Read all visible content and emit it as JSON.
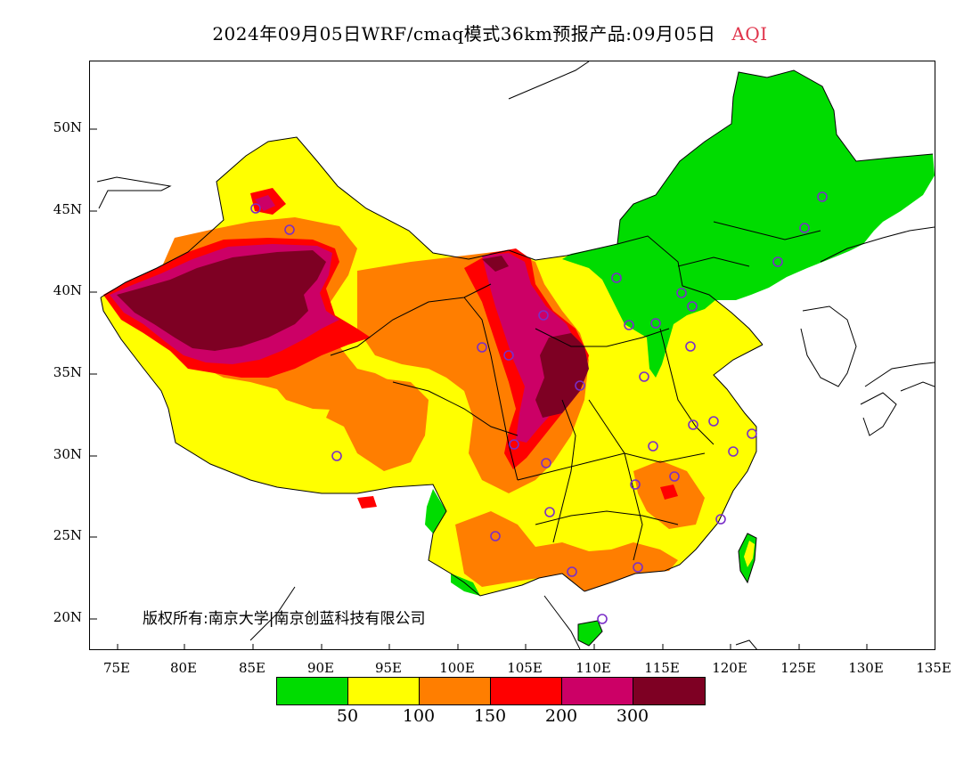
{
  "title": {
    "main": "2024年09月05日WRF/cmaq模式36km预报产品:09月05日",
    "variable": "AQI"
  },
  "map": {
    "lat_labels": [
      "50N",
      "45N",
      "40N",
      "35N",
      "30N",
      "25N",
      "20N"
    ],
    "lon_labels": [
      "75E",
      "80E",
      "85E",
      "90E",
      "95E",
      "100E",
      "105E",
      "110E",
      "115E",
      "120E",
      "125E",
      "130E",
      "135E"
    ],
    "copyright": "版权所有:南京大学|南京创蓝科技有限公司"
  },
  "legend": {
    "colors": [
      "#00dc00",
      "#ffff00",
      "#ff7e00",
      "#ff0000",
      "#cc0066",
      "#7e0023"
    ],
    "labels": [
      "50",
      "100",
      "150",
      "200",
      "300"
    ]
  }
}
